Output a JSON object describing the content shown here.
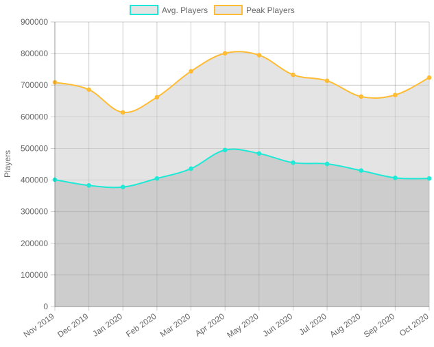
{
  "chart_data": {
    "type": "line",
    "ylabel": "Players",
    "xlabel": "",
    "ylim": [
      0,
      900000
    ],
    "yticks": [
      "0",
      "100000",
      "200000",
      "300000",
      "400000",
      "500000",
      "600000",
      "700000",
      "800000",
      "900000"
    ],
    "categories": [
      "Nov 2019",
      "Dec 2019",
      "Jan 2020",
      "Feb 2020",
      "Mar 2020",
      "Apr 2020",
      "May 2020",
      "Jun 2020",
      "Jul 2020",
      "Aug 2020",
      "Sep 2020",
      "Oct 2020"
    ],
    "grid": true,
    "legend_position": "top",
    "series": [
      {
        "name": "Avg. Players",
        "values": [
          401000,
          383000,
          378000,
          405000,
          436000,
          495000,
          484000,
          455000,
          451000,
          430000,
          407000,
          405000
        ],
        "color": "#1de9d6",
        "fill": "rgba(128,128,128,0.25)"
      },
      {
        "name": "Peak Players",
        "values": [
          709000,
          686000,
          614000,
          662000,
          744000,
          801000,
          795000,
          733000,
          714000,
          664000,
          669000,
          724000
        ],
        "color": "#ffbb33",
        "fill": "rgba(200,200,200,0.5)"
      }
    ]
  }
}
